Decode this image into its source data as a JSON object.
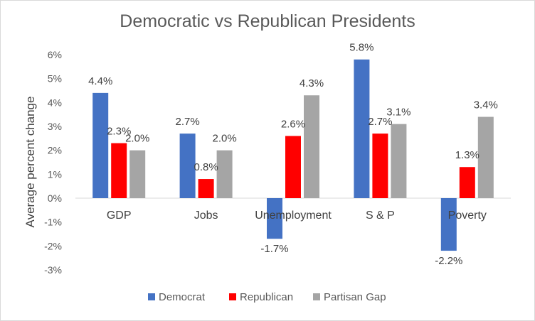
{
  "chart_data": {
    "type": "bar",
    "title": "Democratic vs Republican Presidents",
    "xlabel": "",
    "ylabel": "Average percent change",
    "ylim": [
      -3,
      6
    ],
    "yticks": [
      -3,
      -2,
      -1,
      0,
      1,
      2,
      3,
      4,
      5,
      6
    ],
    "ytick_labels": [
      "-3%",
      "-2%",
      "-1%",
      "0%",
      "1%",
      "2%",
      "3%",
      "4%",
      "5%",
      "6%"
    ],
    "categories": [
      "GDP",
      "Jobs",
      "Unemployment",
      "S & P",
      "Poverty"
    ],
    "series": [
      {
        "name": "Democrat",
        "color": "#4472c4",
        "values": [
          4.4,
          2.7,
          -1.7,
          5.8,
          -2.2
        ],
        "labels": [
          "4.4%",
          "2.7%",
          "-1.7%",
          "5.8%",
          "-2.2%"
        ]
      },
      {
        "name": "Republican",
        "color": "#ff0000",
        "values": [
          2.3,
          0.8,
          2.6,
          2.7,
          1.3
        ],
        "labels": [
          "2.3%",
          "0.8%",
          "2.6%",
          "2.7%",
          "1.3%"
        ]
      },
      {
        "name": "Partisan Gap",
        "color": "#a5a5a5",
        "values": [
          2.0,
          2.0,
          4.3,
          3.1,
          3.4
        ],
        "labels": [
          "2.0%",
          "2.0%",
          "4.3%",
          "3.1%",
          "3.4%"
        ]
      }
    ],
    "legend_position": "bottom",
    "grid": false
  }
}
